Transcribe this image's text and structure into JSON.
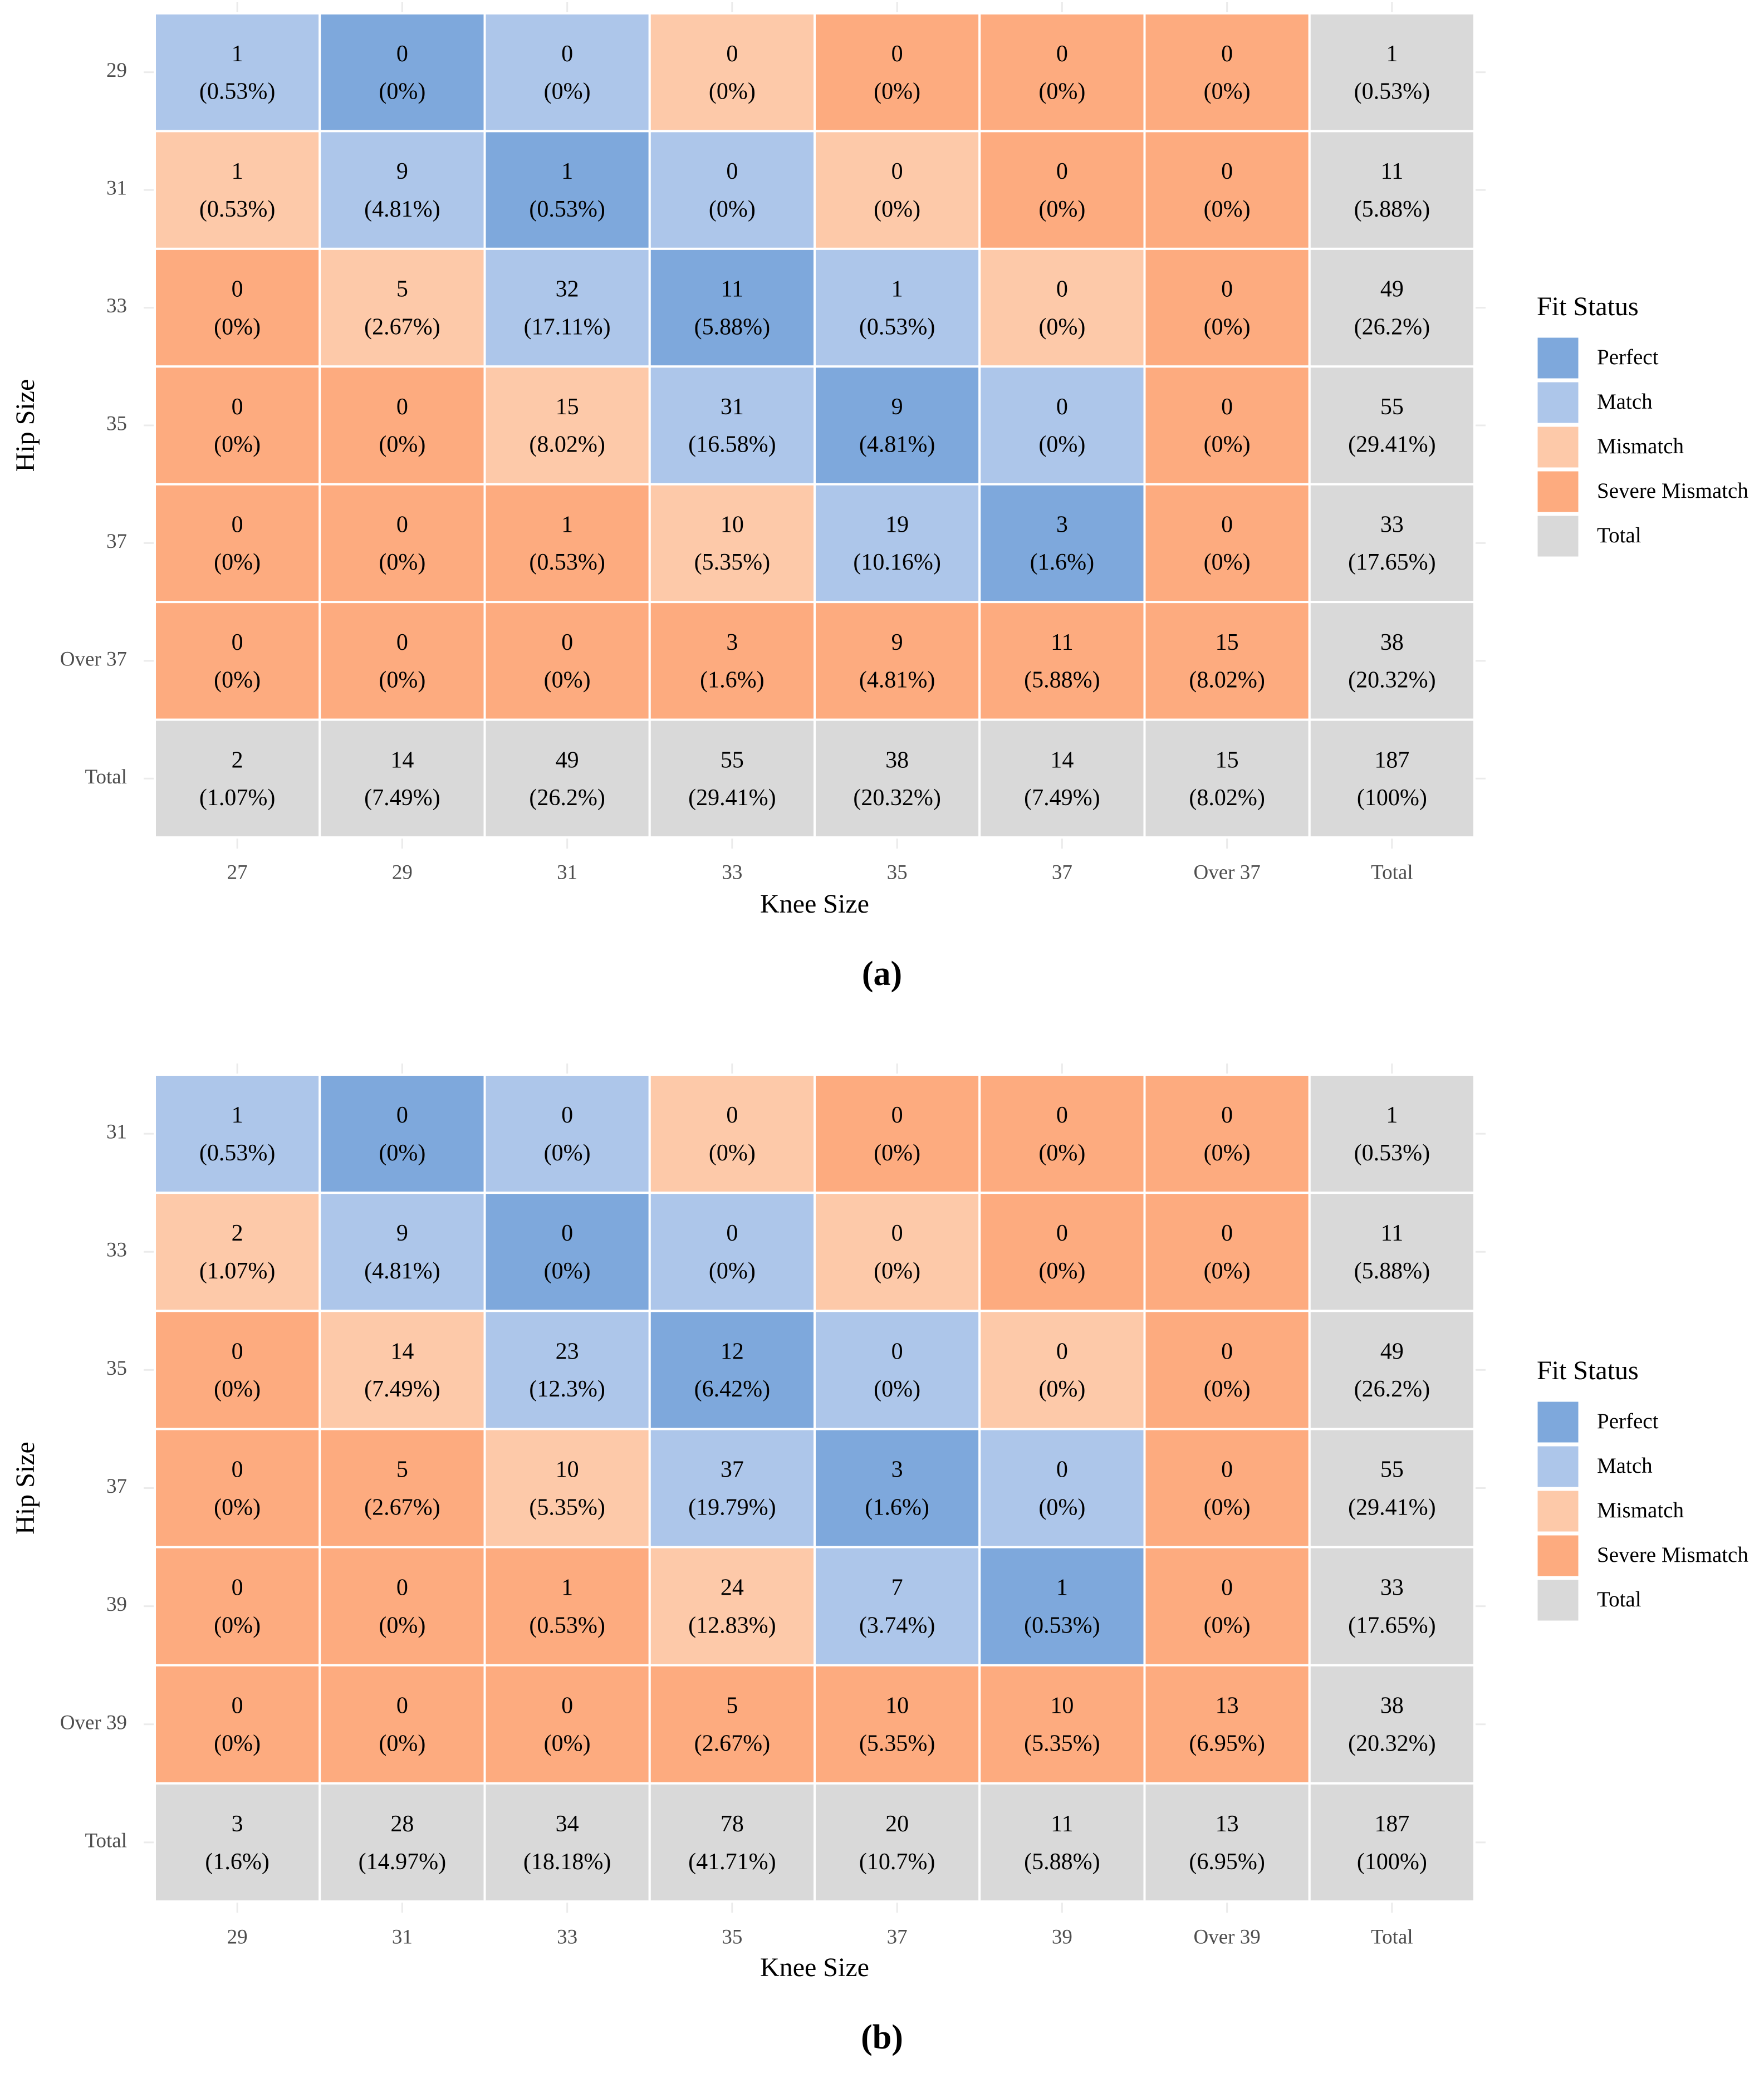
{
  "colors": {
    "Perfect": "#7ea8dc",
    "Match": "#adc6ea",
    "Mismatch": "#fdc9a9",
    "Severe Mismatch": "#fdab7f",
    "Total": "#d9d9d9",
    "gridline": "#ebebeb"
  },
  "chart_data": [
    {
      "type": "heatmap",
      "panel_label": "(a)",
      "xlabel": "Knee Size",
      "ylabel": "Hip Size",
      "x_categories": [
        "27",
        "29",
        "31",
        "33",
        "35",
        "37",
        "Over 37",
        "Total"
      ],
      "y_categories": [
        "29",
        "31",
        "33",
        "35",
        "37",
        "Over 37",
        "Total"
      ],
      "legend": {
        "title": "Fit Status",
        "entries": [
          "Perfect",
          "Match",
          "Mismatch",
          "Severe Mismatch",
          "Total"
        ]
      },
      "rows": [
        [
          {
            "count": "1",
            "percent": "(0.53%)",
            "status": "Match"
          },
          {
            "count": "0",
            "percent": "(0%)",
            "status": "Perfect"
          },
          {
            "count": "0",
            "percent": "(0%)",
            "status": "Match"
          },
          {
            "count": "0",
            "percent": "(0%)",
            "status": "Mismatch"
          },
          {
            "count": "0",
            "percent": "(0%)",
            "status": "Severe Mismatch"
          },
          {
            "count": "0",
            "percent": "(0%)",
            "status": "Severe Mismatch"
          },
          {
            "count": "0",
            "percent": "(0%)",
            "status": "Severe Mismatch"
          },
          {
            "count": "1",
            "percent": "(0.53%)",
            "status": "Total"
          }
        ],
        [
          {
            "count": "1",
            "percent": "(0.53%)",
            "status": "Mismatch"
          },
          {
            "count": "9",
            "percent": "(4.81%)",
            "status": "Match"
          },
          {
            "count": "1",
            "percent": "(0.53%)",
            "status": "Perfect"
          },
          {
            "count": "0",
            "percent": "(0%)",
            "status": "Match"
          },
          {
            "count": "0",
            "percent": "(0%)",
            "status": "Mismatch"
          },
          {
            "count": "0",
            "percent": "(0%)",
            "status": "Severe Mismatch"
          },
          {
            "count": "0",
            "percent": "(0%)",
            "status": "Severe Mismatch"
          },
          {
            "count": "11",
            "percent": "(5.88%)",
            "status": "Total"
          }
        ],
        [
          {
            "count": "0",
            "percent": "(0%)",
            "status": "Severe Mismatch"
          },
          {
            "count": "5",
            "percent": "(2.67%)",
            "status": "Mismatch"
          },
          {
            "count": "32",
            "percent": "(17.11%)",
            "status": "Match"
          },
          {
            "count": "11",
            "percent": "(5.88%)",
            "status": "Perfect"
          },
          {
            "count": "1",
            "percent": "(0.53%)",
            "status": "Match"
          },
          {
            "count": "0",
            "percent": "(0%)",
            "status": "Mismatch"
          },
          {
            "count": "0",
            "percent": "(0%)",
            "status": "Severe Mismatch"
          },
          {
            "count": "49",
            "percent": "(26.2%)",
            "status": "Total"
          }
        ],
        [
          {
            "count": "0",
            "percent": "(0%)",
            "status": "Severe Mismatch"
          },
          {
            "count": "0",
            "percent": "(0%)",
            "status": "Severe Mismatch"
          },
          {
            "count": "15",
            "percent": "(8.02%)",
            "status": "Mismatch"
          },
          {
            "count": "31",
            "percent": "(16.58%)",
            "status": "Match"
          },
          {
            "count": "9",
            "percent": "(4.81%)",
            "status": "Perfect"
          },
          {
            "count": "0",
            "percent": "(0%)",
            "status": "Match"
          },
          {
            "count": "0",
            "percent": "(0%)",
            "status": "Severe Mismatch"
          },
          {
            "count": "55",
            "percent": "(29.41%)",
            "status": "Total"
          }
        ],
        [
          {
            "count": "0",
            "percent": "(0%)",
            "status": "Severe Mismatch"
          },
          {
            "count": "0",
            "percent": "(0%)",
            "status": "Severe Mismatch"
          },
          {
            "count": "1",
            "percent": "(0.53%)",
            "status": "Severe Mismatch"
          },
          {
            "count": "10",
            "percent": "(5.35%)",
            "status": "Mismatch"
          },
          {
            "count": "19",
            "percent": "(10.16%)",
            "status": "Match"
          },
          {
            "count": "3",
            "percent": "(1.6%)",
            "status": "Perfect"
          },
          {
            "count": "0",
            "percent": "(0%)",
            "status": "Severe Mismatch"
          },
          {
            "count": "33",
            "percent": "(17.65%)",
            "status": "Total"
          }
        ],
        [
          {
            "count": "0",
            "percent": "(0%)",
            "status": "Severe Mismatch"
          },
          {
            "count": "0",
            "percent": "(0%)",
            "status": "Severe Mismatch"
          },
          {
            "count": "0",
            "percent": "(0%)",
            "status": "Severe Mismatch"
          },
          {
            "count": "3",
            "percent": "(1.6%)",
            "status": "Severe Mismatch"
          },
          {
            "count": "9",
            "percent": "(4.81%)",
            "status": "Severe Mismatch"
          },
          {
            "count": "11",
            "percent": "(5.88%)",
            "status": "Severe Mismatch"
          },
          {
            "count": "15",
            "percent": "(8.02%)",
            "status": "Severe Mismatch"
          },
          {
            "count": "38",
            "percent": "(20.32%)",
            "status": "Total"
          }
        ],
        [
          {
            "count": "2",
            "percent": "(1.07%)",
            "status": "Total"
          },
          {
            "count": "14",
            "percent": "(7.49%)",
            "status": "Total"
          },
          {
            "count": "49",
            "percent": "(26.2%)",
            "status": "Total"
          },
          {
            "count": "55",
            "percent": "(29.41%)",
            "status": "Total"
          },
          {
            "count": "38",
            "percent": "(20.32%)",
            "status": "Total"
          },
          {
            "count": "14",
            "percent": "(7.49%)",
            "status": "Total"
          },
          {
            "count": "15",
            "percent": "(8.02%)",
            "status": "Total"
          },
          {
            "count": "187",
            "percent": "(100%)",
            "status": "Total"
          }
        ]
      ]
    },
    {
      "type": "heatmap",
      "panel_label": "(b)",
      "xlabel": "Knee Size",
      "ylabel": "Hip Size",
      "x_categories": [
        "29",
        "31",
        "33",
        "35",
        "37",
        "39",
        "Over 39",
        "Total"
      ],
      "y_categories": [
        "31",
        "33",
        "35",
        "37",
        "39",
        "Over 39",
        "Total"
      ],
      "legend": {
        "title": "Fit Status",
        "entries": [
          "Perfect",
          "Match",
          "Mismatch",
          "Severe Mismatch",
          "Total"
        ]
      },
      "rows": [
        [
          {
            "count": "1",
            "percent": "(0.53%)",
            "status": "Match"
          },
          {
            "count": "0",
            "percent": "(0%)",
            "status": "Perfect"
          },
          {
            "count": "0",
            "percent": "(0%)",
            "status": "Match"
          },
          {
            "count": "0",
            "percent": "(0%)",
            "status": "Mismatch"
          },
          {
            "count": "0",
            "percent": "(0%)",
            "status": "Severe Mismatch"
          },
          {
            "count": "0",
            "percent": "(0%)",
            "status": "Severe Mismatch"
          },
          {
            "count": "0",
            "percent": "(0%)",
            "status": "Severe Mismatch"
          },
          {
            "count": "1",
            "percent": "(0.53%)",
            "status": "Total"
          }
        ],
        [
          {
            "count": "2",
            "percent": "(1.07%)",
            "status": "Mismatch"
          },
          {
            "count": "9",
            "percent": "(4.81%)",
            "status": "Match"
          },
          {
            "count": "0",
            "percent": "(0%)",
            "status": "Perfect"
          },
          {
            "count": "0",
            "percent": "(0%)",
            "status": "Match"
          },
          {
            "count": "0",
            "percent": "(0%)",
            "status": "Mismatch"
          },
          {
            "count": "0",
            "percent": "(0%)",
            "status": "Severe Mismatch"
          },
          {
            "count": "0",
            "percent": "(0%)",
            "status": "Severe Mismatch"
          },
          {
            "count": "11",
            "percent": "(5.88%)",
            "status": "Total"
          }
        ],
        [
          {
            "count": "0",
            "percent": "(0%)",
            "status": "Severe Mismatch"
          },
          {
            "count": "14",
            "percent": "(7.49%)",
            "status": "Mismatch"
          },
          {
            "count": "23",
            "percent": "(12.3%)",
            "status": "Match"
          },
          {
            "count": "12",
            "percent": "(6.42%)",
            "status": "Perfect"
          },
          {
            "count": "0",
            "percent": "(0%)",
            "status": "Match"
          },
          {
            "count": "0",
            "percent": "(0%)",
            "status": "Mismatch"
          },
          {
            "count": "0",
            "percent": "(0%)",
            "status": "Severe Mismatch"
          },
          {
            "count": "49",
            "percent": "(26.2%)",
            "status": "Total"
          }
        ],
        [
          {
            "count": "0",
            "percent": "(0%)",
            "status": "Severe Mismatch"
          },
          {
            "count": "5",
            "percent": "(2.67%)",
            "status": "Severe Mismatch"
          },
          {
            "count": "10",
            "percent": "(5.35%)",
            "status": "Mismatch"
          },
          {
            "count": "37",
            "percent": "(19.79%)",
            "status": "Match"
          },
          {
            "count": "3",
            "percent": "(1.6%)",
            "status": "Perfect"
          },
          {
            "count": "0",
            "percent": "(0%)",
            "status": "Match"
          },
          {
            "count": "0",
            "percent": "(0%)",
            "status": "Severe Mismatch"
          },
          {
            "count": "55",
            "percent": "(29.41%)",
            "status": "Total"
          }
        ],
        [
          {
            "count": "0",
            "percent": "(0%)",
            "status": "Severe Mismatch"
          },
          {
            "count": "0",
            "percent": "(0%)",
            "status": "Severe Mismatch"
          },
          {
            "count": "1",
            "percent": "(0.53%)",
            "status": "Severe Mismatch"
          },
          {
            "count": "24",
            "percent": "(12.83%)",
            "status": "Mismatch"
          },
          {
            "count": "7",
            "percent": "(3.74%)",
            "status": "Match"
          },
          {
            "count": "1",
            "percent": "(0.53%)",
            "status": "Perfect"
          },
          {
            "count": "0",
            "percent": "(0%)",
            "status": "Severe Mismatch"
          },
          {
            "count": "33",
            "percent": "(17.65%)",
            "status": "Total"
          }
        ],
        [
          {
            "count": "0",
            "percent": "(0%)",
            "status": "Severe Mismatch"
          },
          {
            "count": "0",
            "percent": "(0%)",
            "status": "Severe Mismatch"
          },
          {
            "count": "0",
            "percent": "(0%)",
            "status": "Severe Mismatch"
          },
          {
            "count": "5",
            "percent": "(2.67%)",
            "status": "Severe Mismatch"
          },
          {
            "count": "10",
            "percent": "(5.35%)",
            "status": "Severe Mismatch"
          },
          {
            "count": "10",
            "percent": "(5.35%)",
            "status": "Severe Mismatch"
          },
          {
            "count": "13",
            "percent": "(6.95%)",
            "status": "Severe Mismatch"
          },
          {
            "count": "38",
            "percent": "(20.32%)",
            "status": "Total"
          }
        ],
        [
          {
            "count": "3",
            "percent": "(1.6%)",
            "status": "Total"
          },
          {
            "count": "28",
            "percent": "(14.97%)",
            "status": "Total"
          },
          {
            "count": "34",
            "percent": "(18.18%)",
            "status": "Total"
          },
          {
            "count": "78",
            "percent": "(41.71%)",
            "status": "Total"
          },
          {
            "count": "20",
            "percent": "(10.7%)",
            "status": "Total"
          },
          {
            "count": "11",
            "percent": "(5.88%)",
            "status": "Total"
          },
          {
            "count": "13",
            "percent": "(6.95%)",
            "status": "Total"
          },
          {
            "count": "187",
            "percent": "(100%)",
            "status": "Total"
          }
        ]
      ]
    }
  ]
}
